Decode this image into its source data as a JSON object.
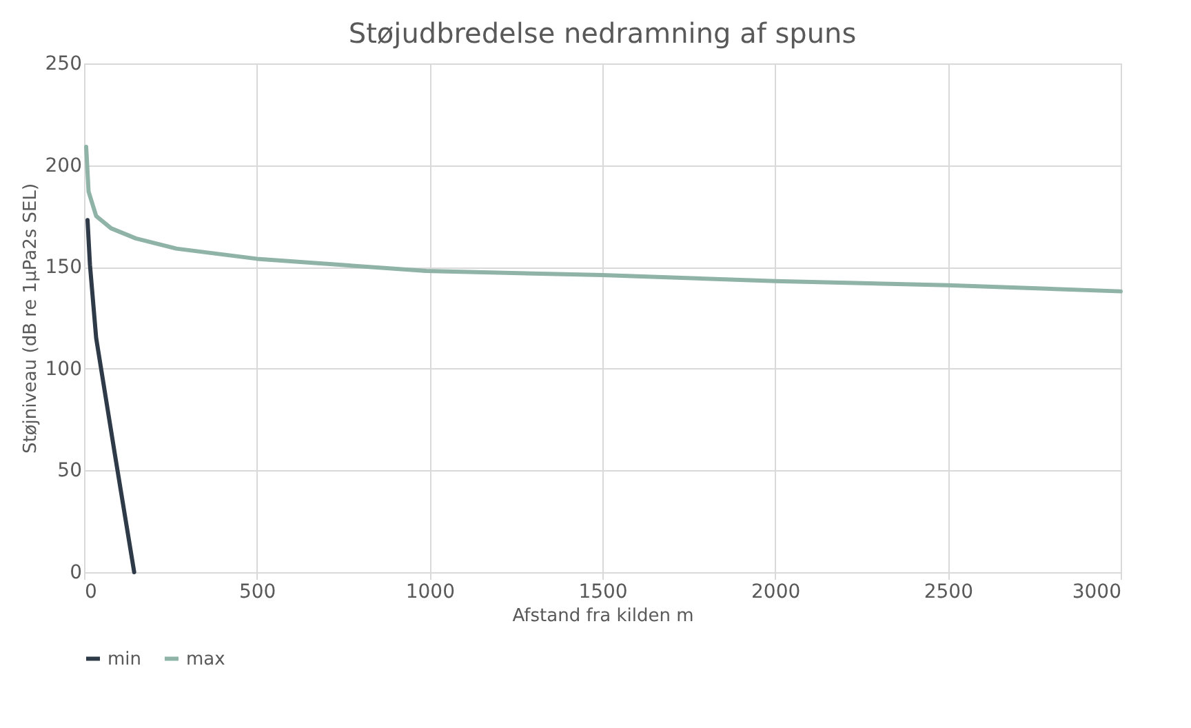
{
  "chart_data": {
    "type": "line",
    "title": "Støjudbredelse nedramning af spuns",
    "xlabel": "Afstand fra kilden m",
    "ylabel": "Støjniveau (dB re 1µPa2s SEL)",
    "xlim": [
      0,
      3000
    ],
    "xticks": [
      0,
      500,
      1000,
      1500,
      2000,
      2500,
      3000
    ],
    "ylim": [
      0,
      250
    ],
    "yticks": [
      0,
      50,
      100,
      150,
      200,
      250
    ],
    "grid": true,
    "legend": "bottom",
    "series": [
      {
        "name": "min",
        "color": "#2e3a48",
        "x": [
          10,
          17,
          35,
          90,
          145
        ],
        "values": [
          173,
          151,
          115,
          57,
          0
        ]
      },
      {
        "name": "max",
        "color": "#8fb3a6",
        "x": [
          6,
          13,
          35,
          78,
          150,
          267,
          500,
          990,
          1500,
          2000,
          2500,
          3000
        ],
        "values": [
          209,
          187,
          175,
          169,
          164,
          159,
          154,
          148,
          146,
          143,
          141,
          138
        ]
      }
    ]
  }
}
